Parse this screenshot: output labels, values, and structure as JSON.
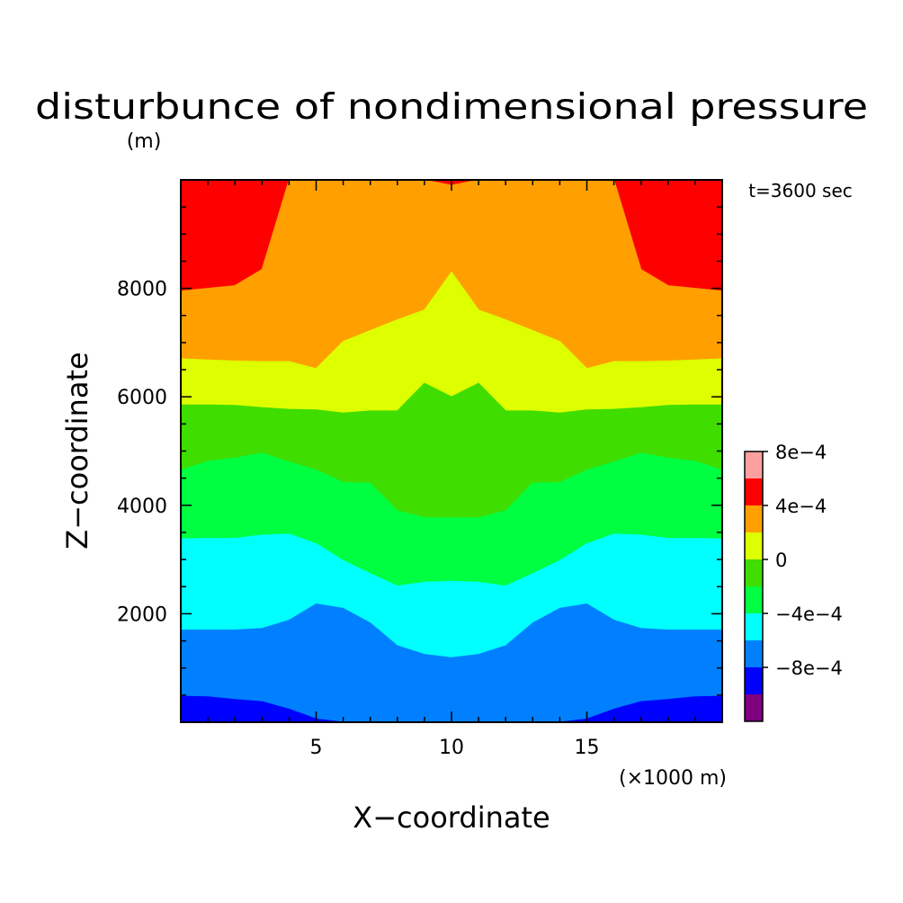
{
  "chart_data": {
    "type": "heatmap",
    "title": "disturbunce of nondimensional pressure",
    "time_label": "t=3600 sec",
    "xlabel": "X−coordinate",
    "ylabel": "Z−coordinate",
    "x_unit": "(×1000 m)",
    "y_unit": "(m)",
    "xlim": [
      0,
      20
    ],
    "ylim": [
      0,
      10000
    ],
    "x_ticks": [
      {
        "value": 5,
        "label": "5"
      },
      {
        "value": 10,
        "label": "10"
      },
      {
        "value": 15,
        "label": "15"
      }
    ],
    "y_ticks": [
      {
        "value": 2000,
        "label": "2000"
      },
      {
        "value": 4000,
        "label": "4000"
      },
      {
        "value": 6000,
        "label": "6000"
      },
      {
        "value": 8000,
        "label": "8000"
      }
    ],
    "colorbar": {
      "levels": [
        {
          "color": "#800080"
        },
        {
          "color": "#0000ff"
        },
        {
          "color": "#0080ff"
        },
        {
          "color": "#00ffff"
        },
        {
          "color": "#00ff40"
        },
        {
          "color": "#40dd00"
        },
        {
          "color": "#ddff00"
        },
        {
          "color": "#ffa000"
        },
        {
          "color": "#ff0000"
        },
        {
          "color": "#ffa0a0"
        }
      ],
      "labels": [
        {
          "boundary": 2,
          "text": "−8e−4"
        },
        {
          "boundary": 4,
          "text": "−4e−4"
        },
        {
          "boundary": 6,
          "text": "0"
        },
        {
          "boundary": 8,
          "text": "4e−4"
        },
        {
          "boundary": 10,
          "text": "8e−4"
        }
      ]
    },
    "bands_bottom_to_top": [
      {
        "level": 1,
        "color": "#0000ff",
        "boundary_z": [
          480,
          470,
          420,
          380,
          240,
          60,
          0,
          0,
          0,
          0,
          0,
          0,
          0,
          0,
          0,
          60,
          240,
          380,
          420,
          470,
          480
        ]
      },
      {
        "level": 2,
        "color": "#0080ff",
        "boundary_z": [
          1700,
          1700,
          1700,
          1730,
          1880,
          2180,
          2100,
          1830,
          1410,
          1250,
          1190,
          1250,
          1410,
          1830,
          2100,
          2180,
          1880,
          1730,
          1700,
          1700,
          1700
        ]
      },
      {
        "level": 3,
        "color": "#00ffff",
        "boundary_z": [
          3380,
          3390,
          3390,
          3450,
          3470,
          3290,
          2980,
          2740,
          2510,
          2580,
          2600,
          2580,
          2510,
          2740,
          2980,
          3290,
          3470,
          3450,
          3390,
          3390,
          3380
        ]
      },
      {
        "level": 4,
        "color": "#00ff40",
        "boundary_z": [
          4650,
          4810,
          4870,
          4960,
          4800,
          4650,
          4420,
          4410,
          3900,
          3770,
          3770,
          3770,
          3900,
          4410,
          4420,
          4650,
          4800,
          4960,
          4870,
          4810,
          4650
        ]
      },
      {
        "level": 5,
        "color": "#40dd00",
        "boundary_z": [
          5850,
          5850,
          5840,
          5800,
          5770,
          5760,
          5700,
          5740,
          5740,
          6250,
          6000,
          6250,
          5740,
          5740,
          5700,
          5760,
          5770,
          5800,
          5840,
          5850,
          5850
        ]
      },
      {
        "level": 6,
        "color": "#ddff00",
        "boundary_z": [
          6700,
          6680,
          6660,
          6650,
          6650,
          6520,
          7020,
          7220,
          7420,
          7600,
          8300,
          7600,
          7420,
          7220,
          7020,
          6520,
          6650,
          6650,
          6660,
          6680,
          6700
        ]
      },
      {
        "level": 7,
        "color": "#ffa000",
        "boundary_z": [
          7950,
          8000,
          8050,
          8350,
          10000,
          10000,
          10000,
          10000,
          10000,
          10000,
          9900,
          10000,
          10000,
          10000,
          10000,
          10000,
          10000,
          8350,
          8050,
          8000,
          7950
        ]
      }
    ]
  }
}
